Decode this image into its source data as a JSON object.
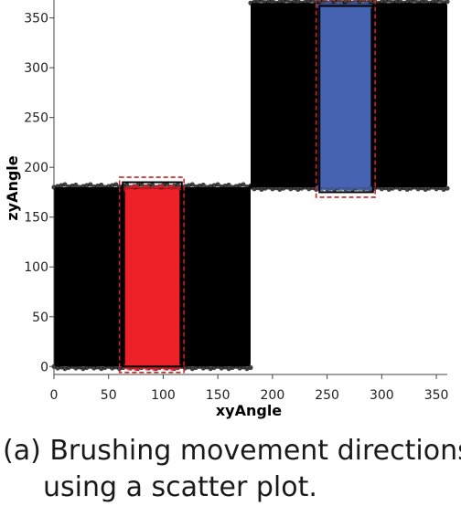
{
  "chart_data": {
    "type": "scatter",
    "xlabel": "xyAngle",
    "ylabel": "zyAngle",
    "xlim": [
      0,
      360
    ],
    "ylim": [
      -8,
      368
    ],
    "x_ticks": [
      0,
      50,
      100,
      150,
      200,
      250,
      300,
      350
    ],
    "y_ticks": [
      0,
      50,
      100,
      150,
      200,
      250,
      300,
      350
    ],
    "clusters": [
      {
        "name": "lower-black",
        "x_range": [
          0,
          180
        ],
        "y_range": [
          0,
          180
        ],
        "color": "#000000"
      },
      {
        "name": "upper-black",
        "x_range": [
          180,
          360
        ],
        "y_range": [
          180,
          365
        ],
        "color": "#000000"
      },
      {
        "name": "red-selection",
        "x_range": [
          65,
          115
        ],
        "y_range": [
          0,
          178
        ],
        "color": "#ee2028"
      },
      {
        "name": "blue-selection",
        "x_range": [
          242,
          290
        ],
        "y_range": [
          180,
          362
        ],
        "color": "#4563b0"
      }
    ],
    "brushes": [
      {
        "name": "red-brush",
        "x_range": [
          63,
          117
        ],
        "y_range": [
          0,
          185
        ],
        "style": "solid",
        "color": "#000000"
      },
      {
        "name": "red-brush-outline",
        "x_range": [
          60,
          119
        ],
        "y_range": [
          -6,
          190
        ],
        "style": "dashed",
        "color": "#cc2222"
      },
      {
        "name": "blue-brush",
        "x_range": [
          243,
          292
        ],
        "y_range": [
          175,
          362
        ],
        "style": "solid",
        "color": "#000000"
      },
      {
        "name": "blue-brush-outline",
        "x_range": [
          240,
          294
        ],
        "y_range": [
          170,
          368
        ],
        "style": "dashed",
        "color": "#cc2222"
      }
    ]
  },
  "caption": {
    "line1": "(a) Brushing movement directions",
    "line2": "using a scatter plot."
  }
}
